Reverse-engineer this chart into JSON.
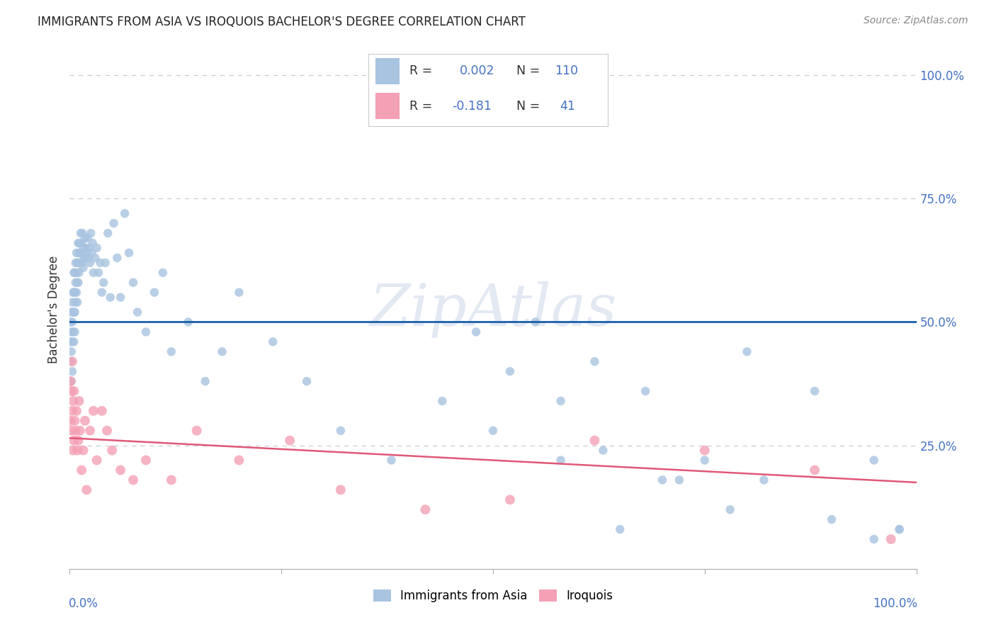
{
  "title": "IMMIGRANTS FROM ASIA VS IROQUOIS BACHELOR'S DEGREE CORRELATION CHART",
  "source": "Source: ZipAtlas.com",
  "ylabel": "Bachelor's Degree",
  "watermark": "ZipAtlas",
  "blue_R": 0.002,
  "blue_N": 110,
  "pink_R": -0.181,
  "pink_N": 41,
  "blue_color": "#a8c4e0",
  "pink_color": "#f4a0b5",
  "blue_line_color": "#1a5fa8",
  "pink_line_color": "#e05878",
  "blue_line_y": 0.5,
  "pink_line_start_y": 0.265,
  "pink_line_end_y": 0.175,
  "blue_scatter_x": [
    0.001,
    0.001,
    0.001,
    0.002,
    0.002,
    0.002,
    0.002,
    0.003,
    0.003,
    0.003,
    0.003,
    0.004,
    0.004,
    0.004,
    0.005,
    0.005,
    0.005,
    0.005,
    0.006,
    0.006,
    0.006,
    0.006,
    0.007,
    0.007,
    0.007,
    0.008,
    0.008,
    0.008,
    0.009,
    0.009,
    0.009,
    0.01,
    0.01,
    0.01,
    0.011,
    0.011,
    0.012,
    0.012,
    0.013,
    0.013,
    0.014,
    0.014,
    0.015,
    0.015,
    0.016,
    0.016,
    0.017,
    0.018,
    0.018,
    0.019,
    0.02,
    0.021,
    0.022,
    0.023,
    0.024,
    0.025,
    0.026,
    0.027,
    0.028,
    0.03,
    0.032,
    0.034,
    0.036,
    0.038,
    0.04,
    0.042,
    0.045,
    0.048,
    0.052,
    0.056,
    0.06,
    0.065,
    0.07,
    0.075,
    0.08,
    0.09,
    0.1,
    0.11,
    0.12,
    0.14,
    0.16,
    0.18,
    0.2,
    0.24,
    0.28,
    0.32,
    0.38,
    0.44,
    0.5,
    0.58,
    0.65,
    0.72,
    0.8,
    0.88,
    0.95,
    0.98,
    0.55,
    0.62,
    0.68,
    0.75,
    0.82,
    0.9,
    0.95,
    0.98,
    0.48,
    0.52,
    0.58,
    0.63,
    0.7,
    0.78
  ],
  "blue_scatter_y": [
    0.42,
    0.46,
    0.5,
    0.44,
    0.48,
    0.52,
    0.38,
    0.46,
    0.5,
    0.54,
    0.4,
    0.48,
    0.52,
    0.56,
    0.46,
    0.52,
    0.56,
    0.6,
    0.52,
    0.56,
    0.6,
    0.48,
    0.54,
    0.58,
    0.62,
    0.56,
    0.6,
    0.64,
    0.58,
    0.62,
    0.54,
    0.62,
    0.58,
    0.66,
    0.64,
    0.6,
    0.66,
    0.62,
    0.64,
    0.68,
    0.66,
    0.62,
    0.68,
    0.64,
    0.65,
    0.61,
    0.63,
    0.67,
    0.63,
    0.65,
    0.64,
    0.67,
    0.63,
    0.65,
    0.62,
    0.68,
    0.64,
    0.66,
    0.6,
    0.63,
    0.65,
    0.6,
    0.62,
    0.56,
    0.58,
    0.62,
    0.68,
    0.55,
    0.7,
    0.63,
    0.55,
    0.72,
    0.64,
    0.58,
    0.52,
    0.48,
    0.56,
    0.6,
    0.44,
    0.5,
    0.38,
    0.44,
    0.56,
    0.46,
    0.38,
    0.28,
    0.22,
    0.34,
    0.28,
    0.22,
    0.08,
    0.18,
    0.44,
    0.36,
    0.22,
    0.08,
    0.5,
    0.42,
    0.36,
    0.22,
    0.18,
    0.1,
    0.06,
    0.08,
    0.48,
    0.4,
    0.34,
    0.24,
    0.18,
    0.12
  ],
  "pink_scatter_x": [
    0.001,
    0.001,
    0.002,
    0.002,
    0.003,
    0.003,
    0.004,
    0.004,
    0.005,
    0.005,
    0.006,
    0.007,
    0.008,
    0.009,
    0.01,
    0.011,
    0.012,
    0.014,
    0.016,
    0.018,
    0.02,
    0.024,
    0.028,
    0.032,
    0.038,
    0.044,
    0.05,
    0.06,
    0.075,
    0.09,
    0.12,
    0.15,
    0.2,
    0.26,
    0.32,
    0.42,
    0.52,
    0.62,
    0.75,
    0.88,
    0.97
  ],
  "pink_scatter_y": [
    0.38,
    0.3,
    0.36,
    0.28,
    0.42,
    0.32,
    0.34,
    0.24,
    0.36,
    0.26,
    0.3,
    0.28,
    0.32,
    0.24,
    0.26,
    0.34,
    0.28,
    0.2,
    0.24,
    0.3,
    0.16,
    0.28,
    0.32,
    0.22,
    0.32,
    0.28,
    0.24,
    0.2,
    0.18,
    0.22,
    0.18,
    0.28,
    0.22,
    0.26,
    0.16,
    0.12,
    0.14,
    0.26,
    0.24,
    0.2,
    0.06
  ],
  "marker_size_blue": 80,
  "marker_size_pink": 100,
  "legend_label_blue": "Immigrants from Asia",
  "legend_label_pink": "Iroquois",
  "axis_color": "#4472c4",
  "ytick_labels": [
    "25.0%",
    "50.0%",
    "75.0%",
    "100.0%"
  ],
  "ytick_vals": [
    0.25,
    0.5,
    0.75,
    1.0
  ],
  "xlim": [
    0,
    1.0
  ],
  "ylim": [
    0,
    1.05
  ]
}
